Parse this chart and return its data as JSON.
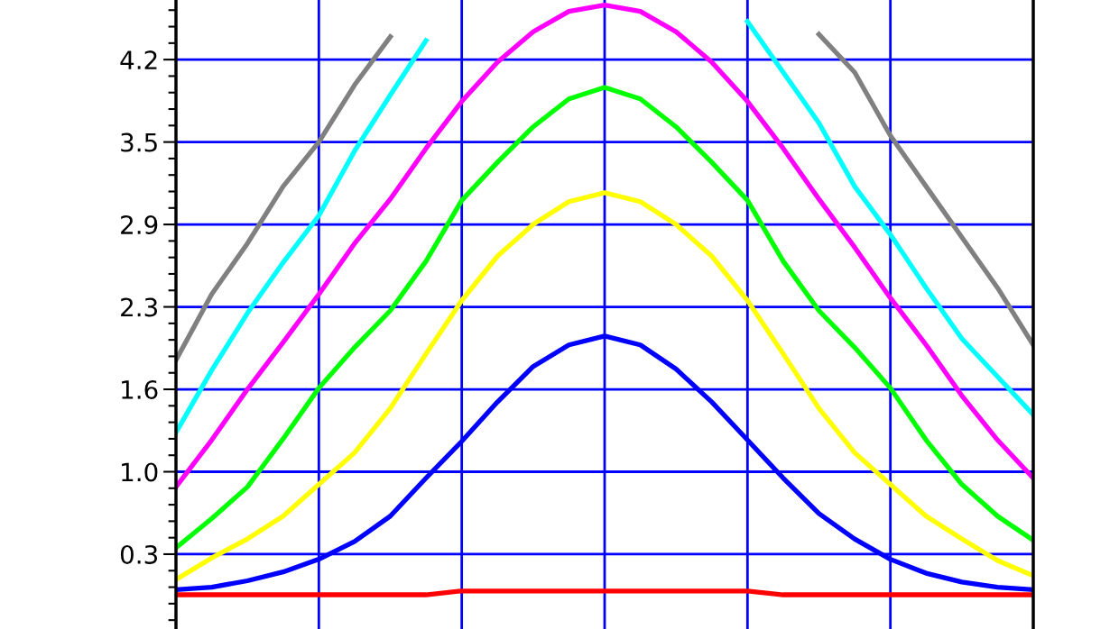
{
  "chart_data": {
    "type": "line",
    "categories": [
      null,
      null,
      null,
      null,
      null,
      null,
      null,
      null,
      null,
      null,
      null,
      null,
      null,
      null,
      null,
      null,
      null,
      null,
      null,
      null,
      null,
      null,
      null,
      null,
      null
    ],
    "series": [
      {
        "color": "#808080",
        "values": [
          1.83,
          2.35,
          2.75,
          3.2,
          3.55,
          4.0,
          4.38,
          null,
          null,
          null,
          null,
          null,
          null,
          null,
          null,
          null,
          null,
          null,
          4.4,
          4.1,
          3.6,
          3.2,
          2.8,
          2.4,
          1.95
        ]
      },
      {
        "color": "#00ffff",
        "values": [
          1.26,
          1.75,
          2.2,
          2.6,
          2.97,
          3.48,
          3.92,
          4.35,
          null,
          null,
          null,
          null,
          null,
          null,
          null,
          null,
          4.5,
          4.1,
          3.7,
          3.2,
          2.82,
          2.4,
          2.0,
          1.7,
          1.4
        ]
      },
      {
        "color": "#ff00ff",
        "values": [
          0.83,
          1.2,
          1.6,
          1.97,
          2.35,
          2.75,
          3.1,
          3.5,
          3.87,
          4.18,
          4.42,
          4.58,
          4.63,
          4.58,
          4.42,
          4.18,
          3.87,
          3.5,
          3.1,
          2.72,
          2.32,
          1.95,
          1.55,
          1.2,
          0.9
        ]
      },
      {
        "color": "#00ff00",
        "values": [
          0.35,
          0.58,
          0.83,
          1.21,
          1.61,
          1.93,
          2.22,
          2.61,
          3.09,
          3.39,
          3.67,
          3.89,
          3.98,
          3.89,
          3.67,
          3.39,
          3.09,
          2.61,
          2.22,
          1.93,
          1.61,
          1.2,
          0.85,
          0.6,
          0.41
        ]
      },
      {
        "color": "#ffff00",
        "values": [
          0.1,
          0.27,
          0.42,
          0.6,
          0.85,
          1.1,
          1.45,
          1.88,
          2.3,
          2.65,
          2.9,
          3.08,
          3.15,
          3.08,
          2.9,
          2.65,
          2.3,
          1.88,
          1.45,
          1.1,
          0.85,
          0.6,
          0.42,
          0.25,
          0.13
        ]
      },
      {
        "color": "#0000ff",
        "values": [
          0.02,
          0.04,
          0.09,
          0.16,
          0.26,
          0.4,
          0.6,
          0.9,
          1.19,
          1.5,
          1.78,
          1.95,
          2.02,
          1.95,
          1.76,
          1.5,
          1.2,
          0.9,
          0.62,
          0.42,
          0.26,
          0.15,
          0.08,
          0.04,
          0.02
        ]
      },
      {
        "color": "#ff0000",
        "values": [
          -0.02,
          -0.02,
          -0.02,
          -0.02,
          -0.02,
          -0.02,
          -0.02,
          -0.02,
          0.01,
          0.01,
          0.01,
          0.01,
          0.01,
          0.01,
          0.01,
          0.01,
          0.01,
          -0.02,
          -0.02,
          -0.02,
          -0.02,
          -0.02,
          -0.02,
          -0.02,
          -0.02
        ]
      }
    ],
    "ylim": [
      -0.29,
      4.67
    ],
    "yticks": [
      {
        "value": 0.3,
        "label": "0.3"
      },
      {
        "value": 0.95,
        "label": "1.0"
      },
      {
        "value": 1.6,
        "label": "1.6"
      },
      {
        "value": 2.25,
        "label": "2.3"
      },
      {
        "value": 2.9,
        "label": "2.9"
      },
      {
        "value": 3.55,
        "label": "3.5"
      },
      {
        "value": 4.2,
        "label": "4.2"
      }
    ],
    "grid": true,
    "marker": "none",
    "line_style": "solid"
  }
}
